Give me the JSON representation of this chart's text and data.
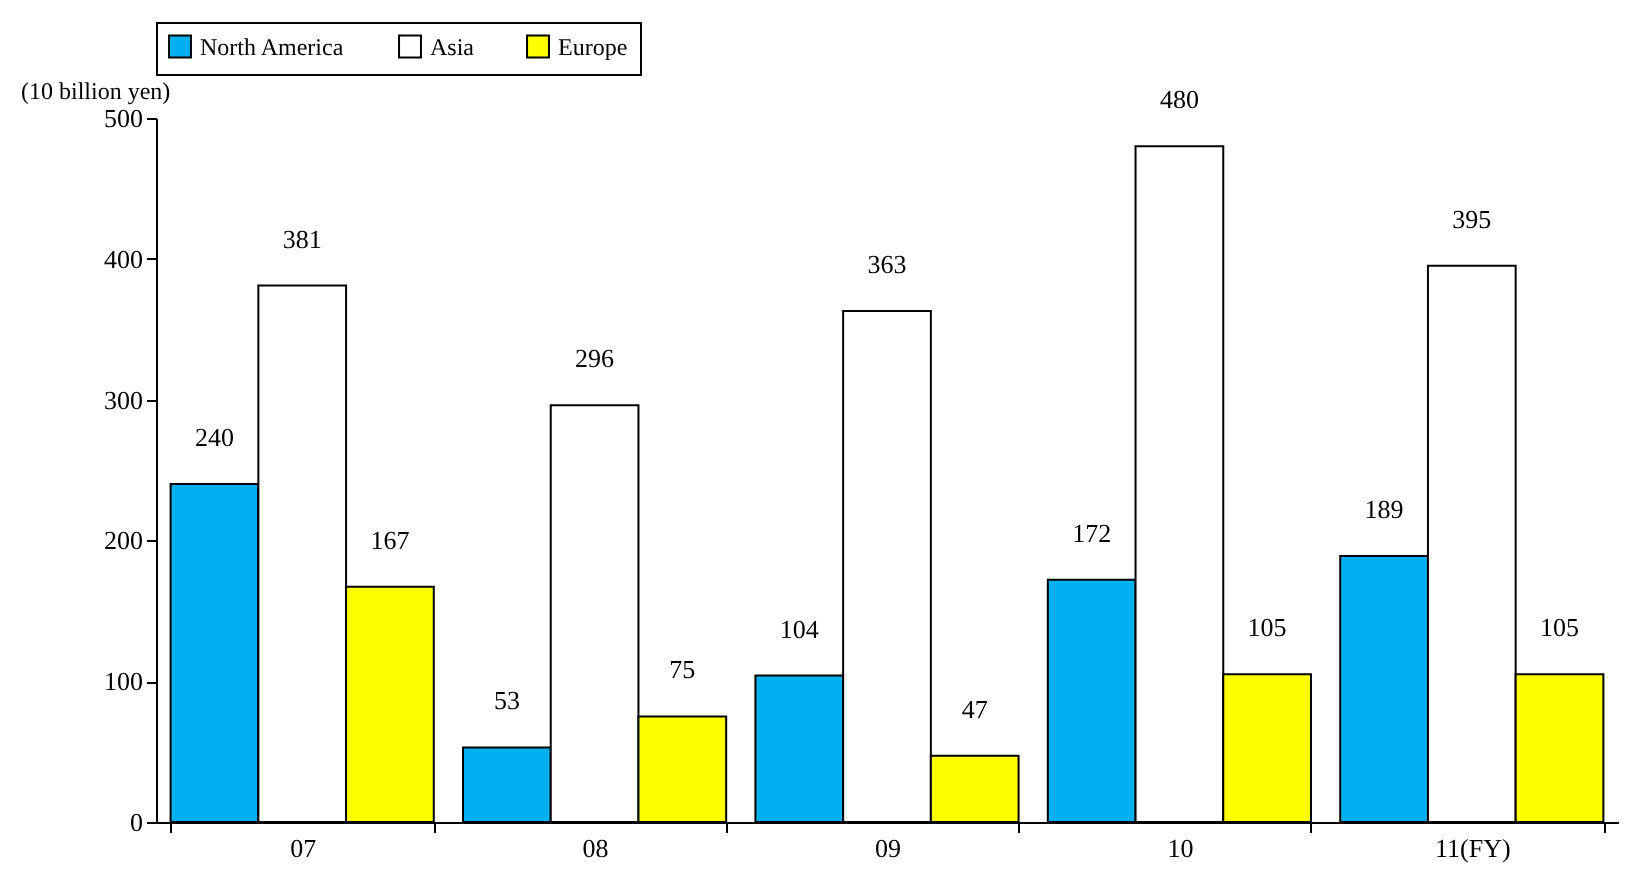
{
  "chart_data": {
    "type": "bar",
    "ylabel": "(10 billion yen)",
    "categories": [
      "07",
      "08",
      "09",
      "10",
      "11(FY)"
    ],
    "series": [
      {
        "name": "North America",
        "color": "#00b0f0",
        "values": [
          240,
          53,
          104,
          172,
          189
        ]
      },
      {
        "name": "Asia",
        "color": "#ffffff",
        "values": [
          381,
          296,
          363,
          480,
          395
        ]
      },
      {
        "name": "Europe",
        "color": "#ffff00",
        "values": [
          167,
          75,
          47,
          105,
          105
        ]
      }
    ],
    "ylim": [
      0,
      500
    ],
    "yticks": [
      0,
      100,
      200,
      300,
      400,
      500
    ],
    "grid": false,
    "legend": "top",
    "data_labels": true
  }
}
